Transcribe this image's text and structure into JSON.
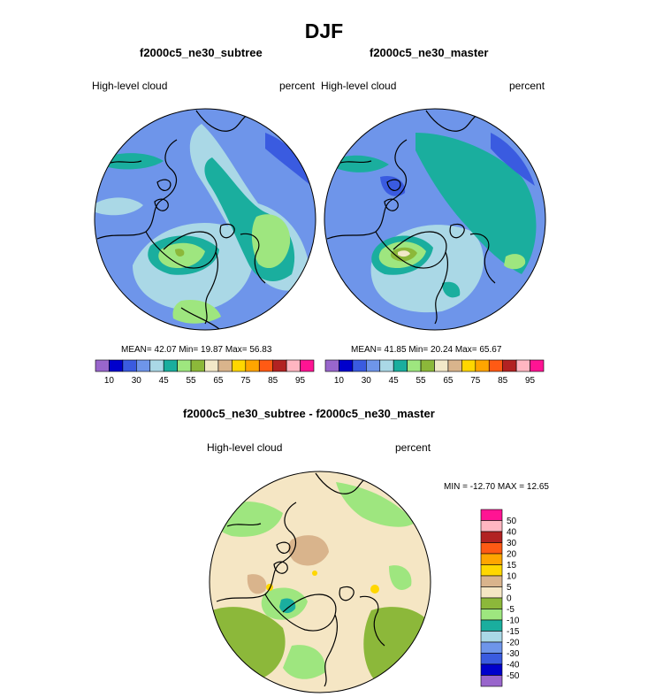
{
  "figure": {
    "title": "DJF",
    "colors": {
      "coast": "#000000",
      "ocean_base": "#6e95ea",
      "diff_base": "#f5e6c4"
    }
  },
  "panels": [
    {
      "title": "f2000c5_ne30_subtree",
      "variable": "High-level cloud",
      "units": "percent",
      "stats": {
        "mean": "42.07",
        "min": "19.87",
        "max": "56.83"
      },
      "stats_text": "MEAN=  42.07  Min=  19.87  Max=  56.83"
    },
    {
      "title": "f2000c5_ne30_master",
      "variable": "High-level cloud",
      "units": "percent",
      "stats": {
        "mean": "41.85",
        "min": "20.24",
        "max": "65.67"
      },
      "stats_text": "MEAN=  41.85  Min=  20.24  Max=  65.67"
    },
    {
      "title": "f2000c5_ne30_subtree - f2000c5_ne30_master",
      "variable": "High-level cloud",
      "units": "percent",
      "stats": {
        "min": "-12.70",
        "max": "12.65"
      },
      "stats_text": "MIN = -12.70 MAX =  12.65"
    }
  ],
  "chart_data": [
    {
      "type": "heatmap",
      "projection": "north-polar-stereographic",
      "title": "f2000c5_ne30_subtree",
      "subtitle_left": "High-level cloud",
      "subtitle_right": "percent",
      "mean": 42.07,
      "min": 19.87,
      "max": 56.83,
      "colorbar": {
        "orientation": "horizontal",
        "levels": [
          10,
          15,
          20,
          25,
          30,
          35,
          40,
          45,
          50,
          55,
          60,
          65,
          70,
          75,
          80,
          85,
          90,
          95
        ],
        "tick_labels": [
          "10",
          "30",
          "45",
          "55",
          "65",
          "75",
          "85",
          "95"
        ],
        "colors": [
          "#9966cc",
          "#0000cc",
          "#3a5be0",
          "#6e95ea",
          "#aad8e6",
          "#1aae9e",
          "#9ee67f",
          "#8cb83a",
          "#f2e8c8",
          "#d9b48c",
          "#ffd700",
          "#ffa500",
          "#ff5a14",
          "#b22222",
          "#ffb6c1",
          "#ff1493"
        ]
      }
    },
    {
      "type": "heatmap",
      "projection": "north-polar-stereographic",
      "title": "f2000c5_ne30_master",
      "subtitle_left": "High-level cloud",
      "subtitle_right": "percent",
      "mean": 41.85,
      "min": 20.24,
      "max": 65.67,
      "colorbar": {
        "orientation": "horizontal",
        "levels": [
          10,
          15,
          20,
          25,
          30,
          35,
          40,
          45,
          50,
          55,
          60,
          65,
          70,
          75,
          80,
          85,
          90,
          95
        ],
        "tick_labels": [
          "10",
          "30",
          "45",
          "55",
          "65",
          "75",
          "85",
          "95"
        ],
        "colors": [
          "#9966cc",
          "#0000cc",
          "#3a5be0",
          "#6e95ea",
          "#aad8e6",
          "#1aae9e",
          "#9ee67f",
          "#8cb83a",
          "#f2e8c8",
          "#d9b48c",
          "#ffd700",
          "#ffa500",
          "#ff5a14",
          "#b22222",
          "#ffb6c1",
          "#ff1493"
        ]
      }
    },
    {
      "type": "heatmap",
      "projection": "north-polar-stereographic",
      "title": "f2000c5_ne30_subtree - f2000c5_ne30_master",
      "subtitle_left": "High-level cloud",
      "subtitle_right": "percent",
      "min": -12.7,
      "max": 12.65,
      "colorbar": {
        "orientation": "vertical",
        "tick_labels": [
          "50",
          "40",
          "30",
          "20",
          "15",
          "10",
          "5",
          "0",
          "-5",
          "-10",
          "-15",
          "-20",
          "-30",
          "-40",
          "-50"
        ],
        "colors": [
          "#ff1493",
          "#ffb6c1",
          "#b22222",
          "#ff5a14",
          "#ffa500",
          "#ffd700",
          "#d9b48c",
          "#f5e6c4",
          "#8cb83a",
          "#9ee67f",
          "#1aae9e",
          "#aad8e6",
          "#6e95ea",
          "#3a5be0",
          "#0000cc",
          "#9966cc"
        ]
      }
    }
  ]
}
